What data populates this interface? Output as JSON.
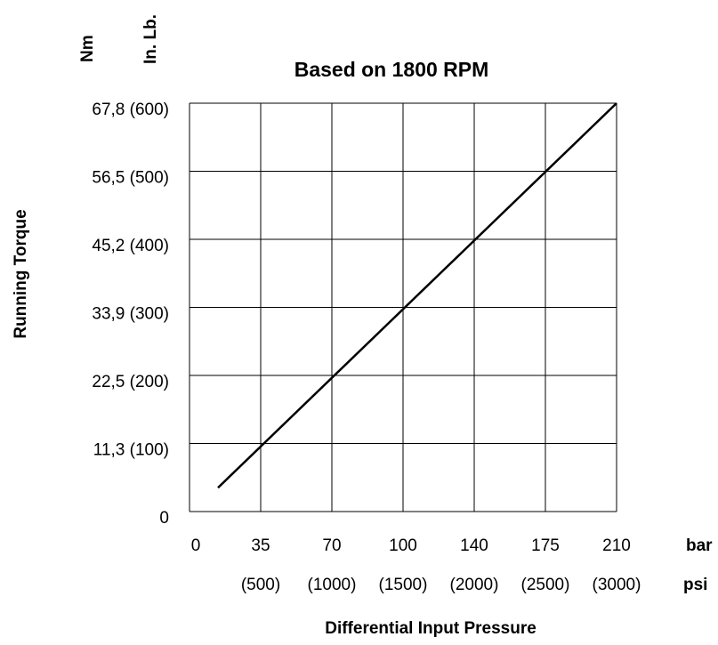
{
  "chart_data": {
    "type": "line",
    "title": "Based on 1800 RPM",
    "xlabel": "Differential Input Pressure",
    "ylabel": "Running Torque",
    "y_units": [
      "Nm",
      "In. Lb."
    ],
    "x_units": [
      "bar",
      "psi"
    ],
    "x_ticks_bar": [
      "0",
      "35",
      "70",
      "100",
      "140",
      "175",
      "210"
    ],
    "x_ticks_psi": [
      "(500)",
      "(1000)",
      "(1500)",
      "(2000)",
      "(2500)",
      "(3000)"
    ],
    "y_ticks": [
      "0",
      "11,3 (100)",
      "22,5 (200)",
      "33,9 (300)",
      "45,2 (400)",
      "56,5 (500)",
      "67,8 (600)"
    ],
    "xlim": [
      0,
      3000
    ],
    "ylim": [
      0,
      600
    ],
    "x_axis_quantity": "psi",
    "y_axis_quantity": "In. Lb.",
    "grid": true,
    "series": [
      {
        "points": [
          [
            200,
            35
          ],
          [
            3000,
            600
          ]
        ],
        "color": "#000000"
      }
    ]
  }
}
